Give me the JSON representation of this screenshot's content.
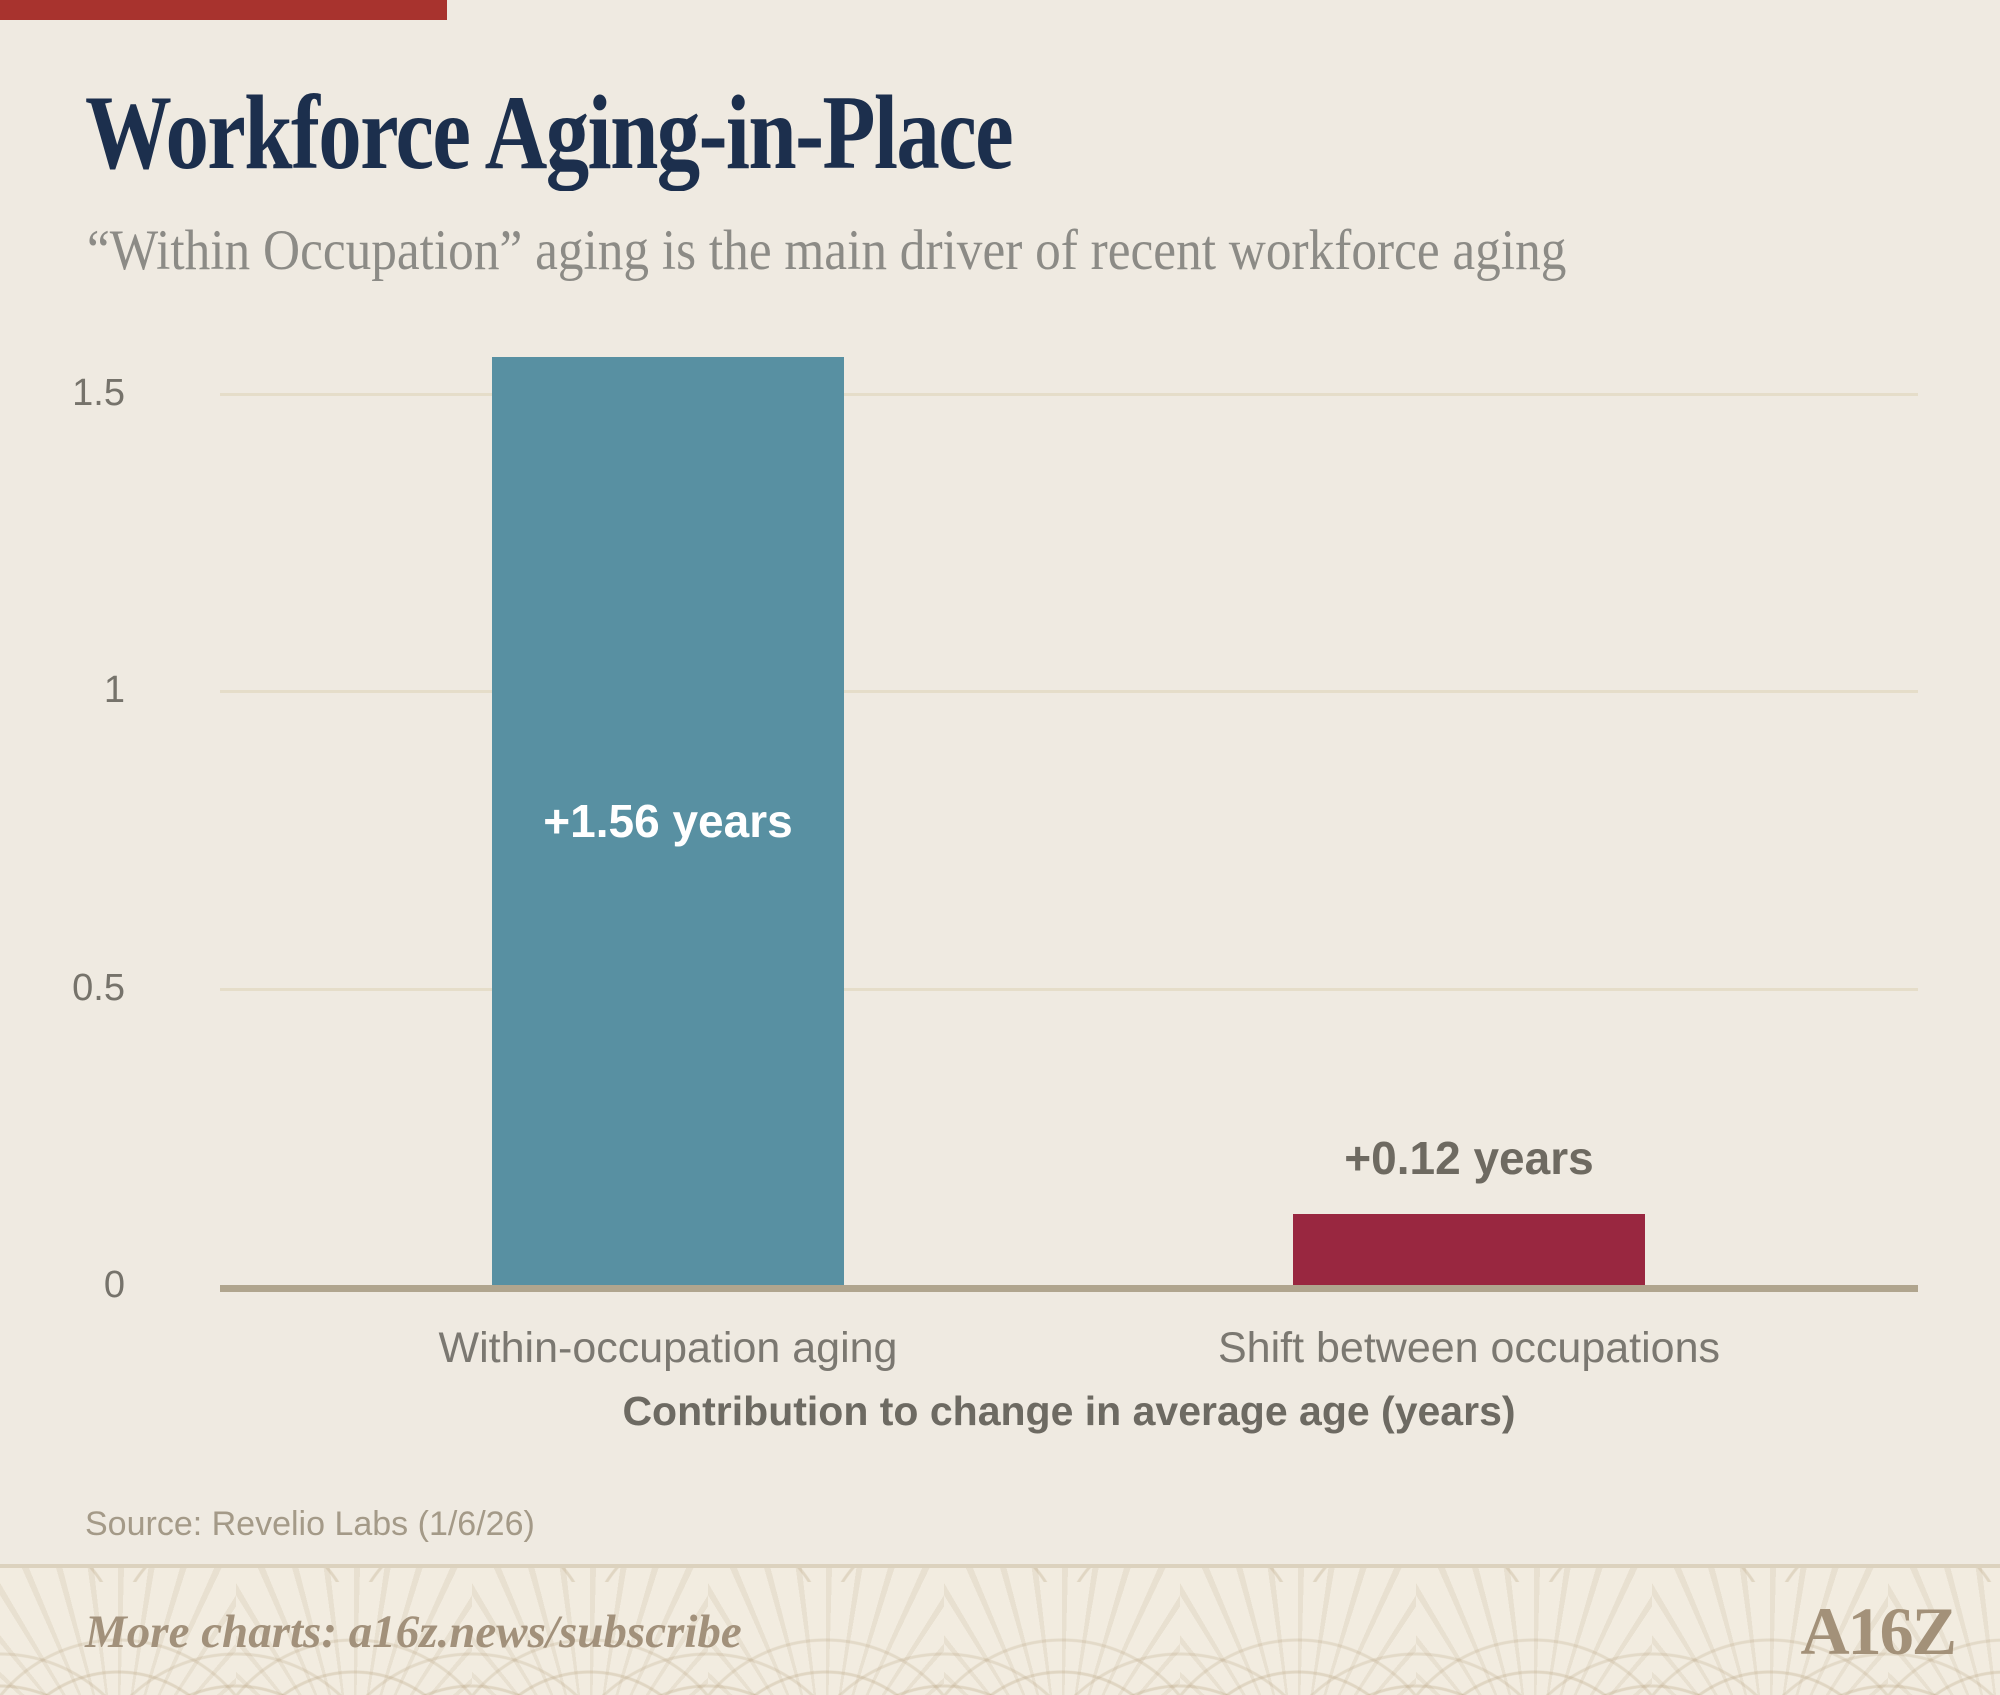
{
  "page": {
    "title": "Workforce Aging-in-Place",
    "subtitle": "“Within Occupation” aging is the main driver of recent workforce aging",
    "source": "Source: Revelio Labs (1/6/26)",
    "footer_text": "More charts: a16z.news/subscribe",
    "logo_text": "A16Z"
  },
  "colors": {
    "background": "#efeae1",
    "top_accent": "#a8332e",
    "title": "#1c2f4d",
    "subtitle": "#8c8b86",
    "tick_label": "#76736b",
    "category_label": "#7b7871",
    "axis_caption": "#6d6a62",
    "gridline": "#e5ddc9",
    "axis_line": "#b0a58e",
    "source": "#a49a88",
    "divider": "#dcd2be",
    "footer_text": "#a2917b",
    "logo": "#a39179"
  },
  "chart_data": {
    "type": "bar",
    "title": "Workforce Aging-in-Place",
    "subtitle": "“Within Occupation” aging is the main driver of recent workforce aging",
    "categories": [
      "Within-occupation aging",
      "Shift between occupations"
    ],
    "values": [
      1.56,
      0.12
    ],
    "bar_labels": [
      "+1.56 years",
      "+0.12 years"
    ],
    "bar_colors": [
      "#5890a2",
      "#992740"
    ],
    "bar_label_colors": [
      "#ffffff",
      "#6e6a61"
    ],
    "bar_label_placement": [
      "inside",
      "above"
    ],
    "xlabel": "Contribution to change in average age (years)",
    "ylabel": "",
    "yticks": [
      0,
      0.5,
      1,
      1.5
    ],
    "ylim": [
      0,
      1.6
    ],
    "grid": "horizontal",
    "legend": "none"
  }
}
